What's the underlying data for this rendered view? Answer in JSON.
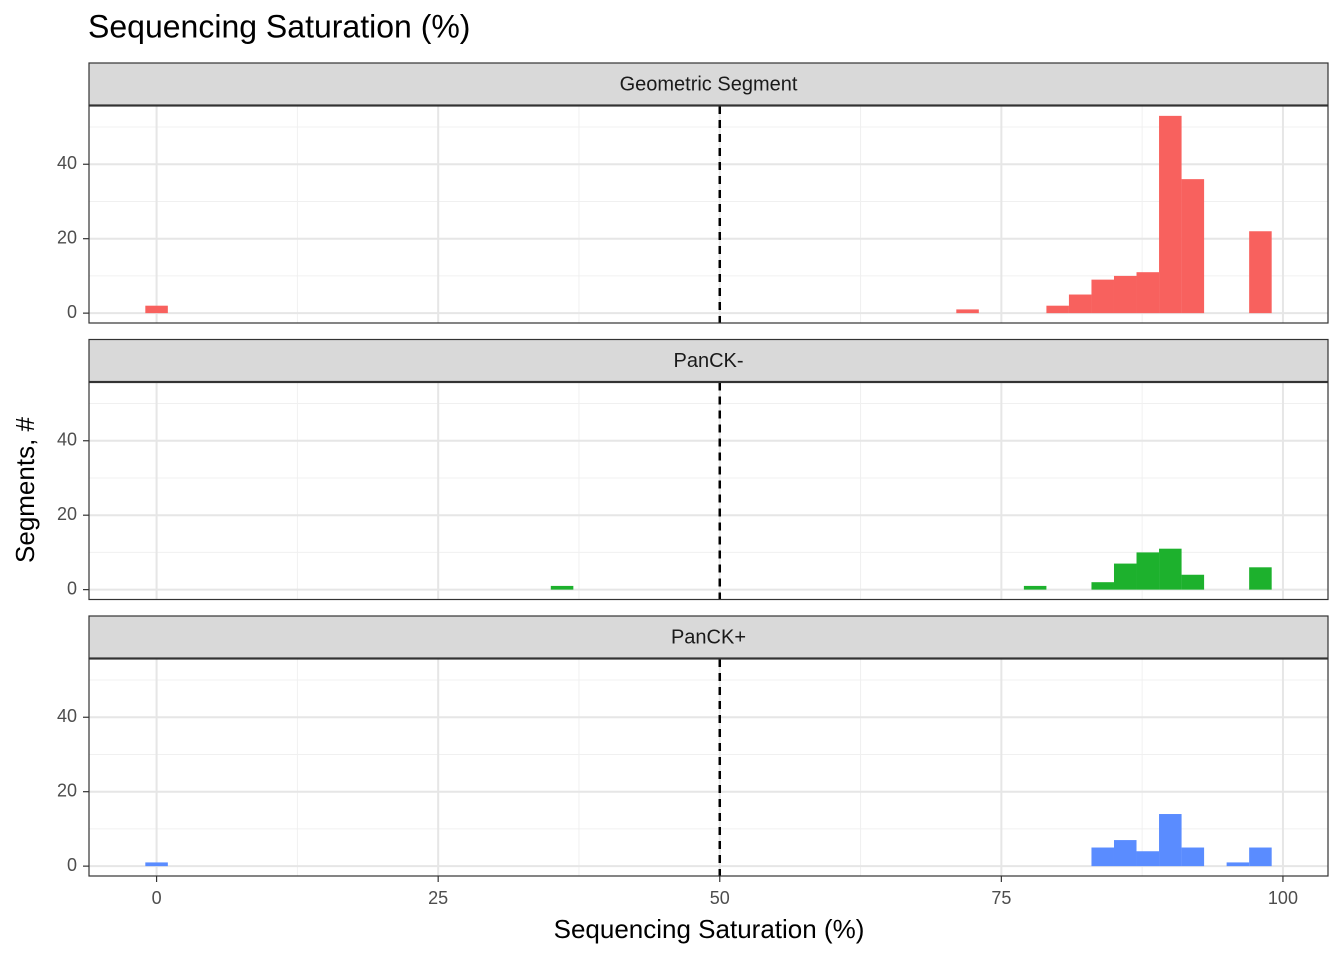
{
  "title": "Sequencing Saturation (%)",
  "xlabel": "Sequencing Saturation (%)",
  "ylabel": "Segments, #",
  "chart_data": [
    {
      "type": "histogram",
      "title": "Geometric Segment",
      "color": "#f8615e",
      "bins": [
        -1,
        1,
        3,
        5,
        7,
        9,
        11,
        13,
        15,
        17,
        19,
        21,
        23,
        25,
        27,
        29,
        31,
        33,
        35,
        37,
        39,
        41,
        43,
        45,
        47,
        49,
        51,
        53,
        55,
        57,
        59,
        61,
        63,
        65,
        67,
        69,
        71,
        73,
        75,
        77,
        79,
        81,
        83,
        85,
        87,
        89,
        91,
        93,
        95,
        97,
        99
      ],
      "values": [
        2,
        0,
        0,
        0,
        0,
        0,
        0,
        0,
        0,
        0,
        0,
        0,
        0,
        0,
        0,
        0,
        0,
        0,
        0,
        0,
        0,
        0,
        0,
        0,
        0,
        0,
        0,
        0,
        0,
        0,
        0,
        0,
        0,
        0,
        0,
        0,
        1,
        0,
        0,
        0,
        2,
        5,
        9,
        10,
        11,
        53,
        36,
        0,
        0,
        22
      ],
      "xlim": [
        -6,
        104
      ],
      "xticks": [
        0,
        25,
        50,
        75,
        100
      ],
      "xminor": [
        12.5,
        37.5,
        62.5,
        87.5
      ],
      "ylim": [
        -2.65,
        55.65
      ],
      "yticks": [
        0,
        20,
        40
      ],
      "yminor": [
        10,
        30,
        50
      ],
      "vline": 50,
      "grid": true
    },
    {
      "type": "histogram",
      "title": "PanCK-",
      "color": "#1db12d",
      "bins": [
        -1,
        1,
        3,
        5,
        7,
        9,
        11,
        13,
        15,
        17,
        19,
        21,
        23,
        25,
        27,
        29,
        31,
        33,
        35,
        37,
        39,
        41,
        43,
        45,
        47,
        49,
        51,
        53,
        55,
        57,
        59,
        61,
        63,
        65,
        67,
        69,
        71,
        73,
        75,
        77,
        79,
        81,
        83,
        85,
        87,
        89,
        91,
        93,
        95,
        97,
        99
      ],
      "values": [
        0,
        0,
        0,
        0,
        0,
        0,
        0,
        0,
        0,
        0,
        0,
        0,
        0,
        0,
        0,
        0,
        0,
        0,
        1,
        0,
        0,
        0,
        0,
        0,
        0,
        0,
        0,
        0,
        0,
        0,
        0,
        0,
        0,
        0,
        0,
        0,
        0,
        0,
        0,
        1,
        0,
        0,
        2,
        7,
        10,
        11,
        4,
        0,
        0,
        6
      ],
      "xlim": [
        -6,
        104
      ],
      "xticks": [
        0,
        25,
        50,
        75,
        100
      ],
      "xminor": [
        12.5,
        37.5,
        62.5,
        87.5
      ],
      "ylim": [
        -2.65,
        55.65
      ],
      "yticks": [
        0,
        20,
        40
      ],
      "yminor": [
        10,
        30,
        50
      ],
      "vline": 50,
      "grid": true
    },
    {
      "type": "histogram",
      "title": "PanCK+",
      "color": "#5a8cff",
      "bins": [
        -1,
        1,
        3,
        5,
        7,
        9,
        11,
        13,
        15,
        17,
        19,
        21,
        23,
        25,
        27,
        29,
        31,
        33,
        35,
        37,
        39,
        41,
        43,
        45,
        47,
        49,
        51,
        53,
        55,
        57,
        59,
        61,
        63,
        65,
        67,
        69,
        71,
        73,
        75,
        77,
        79,
        81,
        83,
        85,
        87,
        89,
        91,
        93,
        95,
        97,
        99
      ],
      "values": [
        1,
        0,
        0,
        0,
        0,
        0,
        0,
        0,
        0,
        0,
        0,
        0,
        0,
        0,
        0,
        0,
        0,
        0,
        0,
        0,
        0,
        0,
        0,
        0,
        0,
        0,
        0,
        0,
        0,
        0,
        0,
        0,
        0,
        0,
        0,
        0,
        0,
        0,
        0,
        0,
        0,
        0,
        5,
        7,
        4,
        14,
        5,
        0,
        1,
        5
      ],
      "xlim": [
        -6,
        104
      ],
      "xticks": [
        0,
        25,
        50,
        75,
        100
      ],
      "xminor": [
        12.5,
        37.5,
        62.5,
        87.5
      ],
      "ylim": [
        -2.65,
        55.65
      ],
      "yticks": [
        0,
        20,
        40
      ],
      "yminor": [
        10,
        30,
        50
      ],
      "vline": 50,
      "grid": true
    }
  ]
}
